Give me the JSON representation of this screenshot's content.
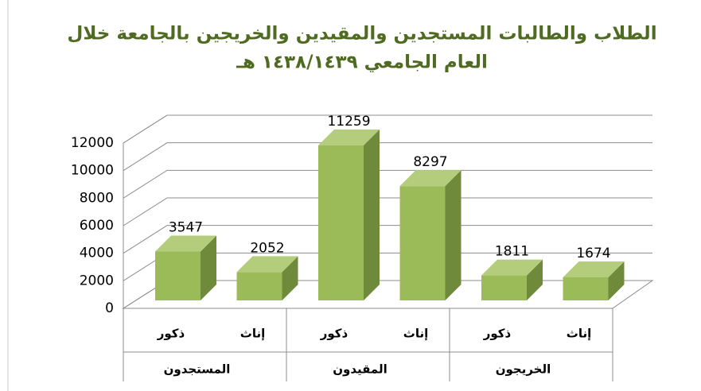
{
  "chart_data": {
    "type": "bar3d",
    "title": [
      "الطلاب والطالبات المستجدين والمقيدين والخريجين بالجامعة خلال",
      "العام الجامعي ١٤٣٨/١٤٣٩ هـ"
    ],
    "categories": [
      "ذكور",
      "إناث",
      "ذكور",
      "إناث",
      "ذكور",
      "إناث"
    ],
    "category_groups": [
      "المستجدون",
      "المقيدون",
      "الخريجون"
    ],
    "values": [
      3547,
      2052,
      11259,
      8297,
      1811,
      1674
    ],
    "color": "#9bbb59",
    "ylim": [
      0,
      12000
    ],
    "yticks": [
      0,
      2000,
      4000,
      6000,
      8000,
      10000,
      12000
    ],
    "grid": true
  }
}
